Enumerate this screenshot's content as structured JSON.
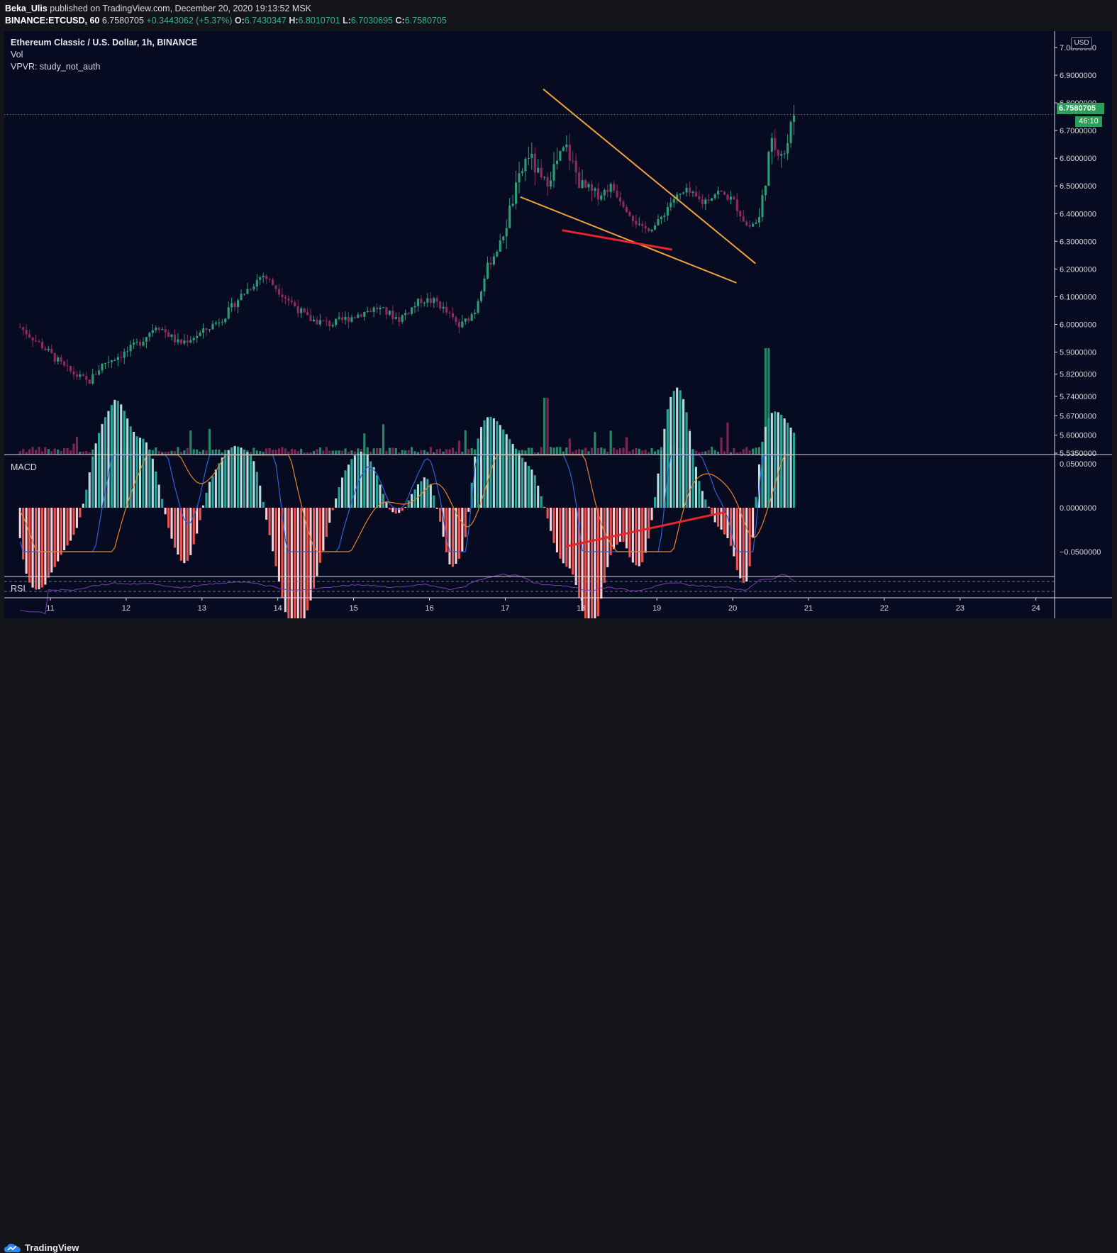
{
  "header": {
    "author": "Beka_Ulis",
    "published_text": "published on TradingView.com, December 20, 2020 19:13:52 MSK",
    "symbol": "BINANCE:ETCUSD, 60",
    "last": "6.7580705",
    "change": "+0.3443062 (+5.37%)",
    "o_label": "O:",
    "o": "6.7430347",
    "h_label": "H:",
    "h": "6.8010701",
    "l_label": "L:",
    "l": "6.7030695",
    "c_label": "C:",
    "c": "6.7580705"
  },
  "legend": {
    "title": "Ethereum Classic / U.S. Dollar, 1h, BINANCE",
    "vol": "Vol",
    "vpvr": "VPVR: study_not_auth"
  },
  "price_axis": {
    "currency_badge": "USD",
    "current_price": "6.7580705",
    "countdown": "46:10"
  },
  "panes": {
    "macd_label": "MACD",
    "rsi_label": "RSI"
  },
  "footer": {
    "brand": "TradingView"
  },
  "colors": {
    "background": "#070b22",
    "up": "#2d9d76",
    "down": "#8e2a5e",
    "trendline_orange": "#f0a23a",
    "trendline_red": "#e8252c",
    "macd_line": "#2b62d8",
    "signal_line": "#e8822c",
    "rsi_line": "#7b3fb0"
  },
  "chart_data": {
    "type": "candlestick",
    "price_ticks": [
      "7.0000000",
      "6.9000000",
      "6.8000000",
      "6.7000000",
      "6.6000000",
      "6.5000000",
      "6.4000000",
      "6.3000000",
      "6.2000000",
      "6.1000000",
      "6.0000000",
      "5.9000000",
      "5.8200000",
      "5.7400000",
      "5.6700000",
      "5.6000000",
      "5.5350000"
    ],
    "macd_ticks": [
      "0.0500000",
      "0.0000000",
      "−0.0500000"
    ],
    "x_ticks": [
      "11",
      "12",
      "13",
      "14",
      "15",
      "16",
      "17",
      "18",
      "19",
      "20",
      "21",
      "22",
      "23",
      "24"
    ],
    "price_keypoints": [
      [
        10.6,
        5.99
      ],
      [
        10.9,
        5.92
      ],
      [
        11.2,
        5.84
      ],
      [
        11.5,
        5.79
      ],
      [
        11.7,
        5.86
      ],
      [
        12.0,
        5.9
      ],
      [
        12.2,
        5.94
      ],
      [
        12.4,
        6.0
      ],
      [
        12.7,
        5.93
      ],
      [
        13.0,
        5.97
      ],
      [
        13.3,
        6.03
      ],
      [
        13.5,
        6.1
      ],
      [
        13.8,
        6.18
      ],
      [
        14.1,
        6.1
      ],
      [
        14.4,
        6.02
      ],
      [
        14.7,
        6.0
      ],
      [
        15.0,
        6.03
      ],
      [
        15.3,
        6.06
      ],
      [
        15.6,
        6.02
      ],
      [
        15.9,
        6.09
      ],
      [
        16.1,
        6.08
      ],
      [
        16.4,
        5.99
      ],
      [
        16.6,
        6.05
      ],
      [
        16.75,
        6.2
      ],
      [
        16.95,
        6.3
      ],
      [
        17.1,
        6.45
      ],
      [
        17.3,
        6.62
      ],
      [
        17.5,
        6.5
      ],
      [
        17.8,
        6.64
      ],
      [
        18.0,
        6.5
      ],
      [
        18.2,
        6.46
      ],
      [
        18.4,
        6.5
      ],
      [
        18.6,
        6.42
      ],
      [
        18.8,
        6.34
      ],
      [
        19.0,
        6.36
      ],
      [
        19.2,
        6.45
      ],
      [
        19.4,
        6.48
      ],
      [
        19.6,
        6.44
      ],
      [
        19.8,
        6.48
      ],
      [
        20.0,
        6.45
      ],
      [
        20.2,
        6.35
      ],
      [
        20.35,
        6.38
      ],
      [
        20.5,
        6.65
      ],
      [
        20.7,
        6.62
      ],
      [
        20.8,
        6.76
      ]
    ],
    "vpvr": "study_not_auth"
  }
}
